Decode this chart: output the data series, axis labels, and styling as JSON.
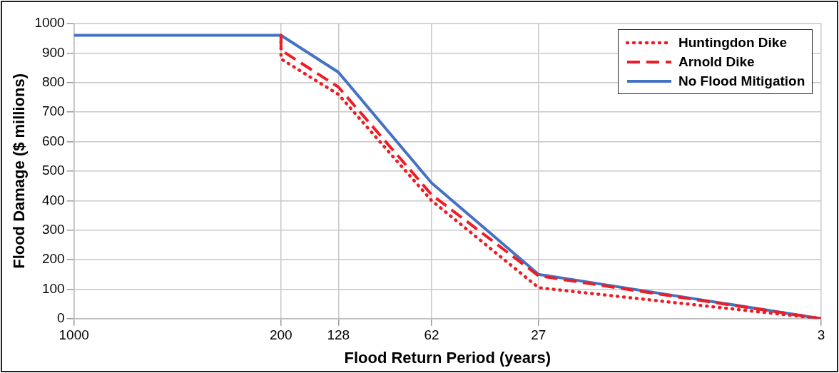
{
  "chart_data": {
    "type": "line",
    "xlabel": "Flood Return Period (years)",
    "ylabel": "Flood Damage ($ millions)",
    "log": "x",
    "xlim": [
      1000,
      3
    ],
    "xticks": [
      1000,
      200,
      128,
      62,
      27,
      3
    ],
    "ylim": [
      0,
      1000
    ],
    "yticks": [
      0,
      100,
      200,
      300,
      400,
      500,
      600,
      700,
      800,
      900,
      1000
    ],
    "grid": true,
    "legend": "top right",
    "marker": "none",
    "series": [
      {
        "name": "Huntingdon Dike",
        "color": "#ee1c25",
        "line_style": "dotted",
        "x": [
          200,
          200,
          128,
          62,
          27,
          3
        ],
        "values": [
          960,
          880,
          760,
          400,
          105,
          0
        ]
      },
      {
        "name": "Arnold Dike",
        "color": "#ee1c25",
        "line_style": "dashed",
        "x": [
          200,
          200,
          128,
          62,
          27,
          3
        ],
        "values": [
          960,
          910,
          785,
          420,
          145,
          0
        ]
      },
      {
        "name": "No Flood Mitigation",
        "color": "#4472c4",
        "line_style": "solid",
        "x": [
          1000,
          200,
          128,
          62,
          27,
          3
        ],
        "values": [
          960,
          960,
          835,
          460,
          150,
          0
        ]
      }
    ]
  }
}
